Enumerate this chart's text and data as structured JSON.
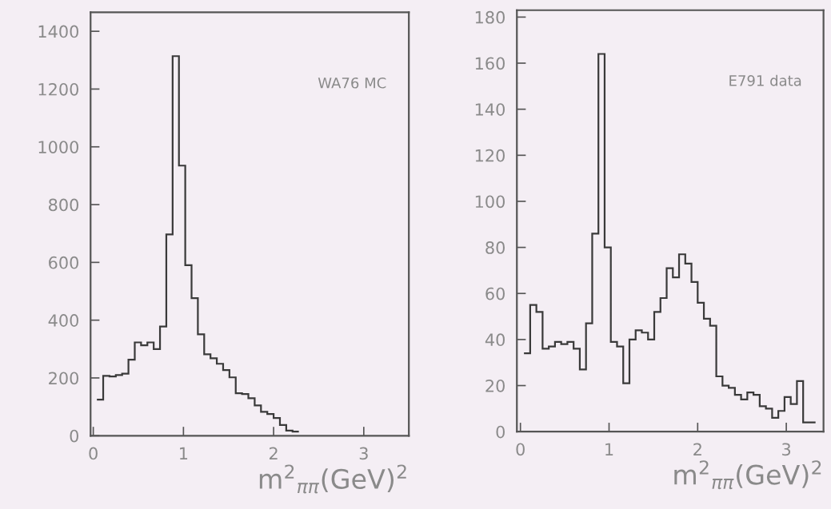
{
  "chart_data": [
    {
      "type": "histogram",
      "color": "#3a3a3a",
      "xlabel": "m$^{2}$$_{ππ}$(GeV)$^{2}$",
      "annotations": [
        "WA76 MC"
      ],
      "bins": [
        0.04,
        0.11,
        0.18,
        0.25,
        0.32,
        0.39,
        0.46,
        0.53,
        0.6,
        0.67,
        0.74,
        0.81,
        0.88,
        0.95,
        1.02,
        1.09,
        1.16,
        1.23,
        1.3,
        1.37,
        1.44,
        1.51,
        1.58,
        1.65,
        1.72,
        1.79,
        1.86,
        1.93,
        2.0,
        2.07,
        2.14,
        2.21,
        2.28
      ],
      "values": [
        125,
        207,
        205,
        210,
        215,
        263,
        323,
        313,
        323,
        300,
        378,
        697,
        1314,
        935,
        590,
        476,
        351,
        282,
        268,
        249,
        227,
        202,
        147,
        144,
        130,
        105,
        83,
        75,
        61,
        37,
        18,
        14
      ],
      "xlim": [
        -0.03,
        3.5
      ],
      "ylim": [
        0,
        1466
      ],
      "xticks": [
        0,
        1,
        2,
        3
      ],
      "yticks": [
        0,
        200,
        400,
        600,
        800,
        1000,
        1200,
        1400
      ]
    },
    {
      "type": "histogram",
      "color": "#3a3a3a",
      "xlabel": "m$^{2}$$_{ππ}$(GeV)$^{2}$",
      "annotations": [
        "E791 data"
      ],
      "bins": [
        0.04,
        0.11,
        0.18,
        0.25,
        0.32,
        0.39,
        0.46,
        0.53,
        0.6,
        0.67,
        0.74,
        0.81,
        0.88,
        0.95,
        1.02,
        1.09,
        1.16,
        1.23,
        1.3,
        1.37,
        1.44,
        1.51,
        1.58,
        1.65,
        1.72,
        1.79,
        1.86,
        1.93,
        2.0,
        2.07,
        2.14,
        2.21,
        2.28,
        2.35,
        2.42,
        2.49,
        2.56,
        2.63,
        2.7,
        2.77,
        2.84,
        2.91,
        2.98,
        3.05,
        3.12,
        3.19,
        3.26,
        3.33
      ],
      "values": [
        34,
        55,
        52,
        36,
        37,
        39,
        38,
        39,
        36,
        27,
        47,
        86,
        164,
        80,
        39,
        37,
        21,
        40,
        44,
        43,
        40,
        52,
        58,
        71,
        67,
        77,
        73,
        65,
        56,
        49,
        46,
        24,
        20,
        19,
        16,
        14,
        17,
        16,
        11,
        10,
        6,
        9,
        15,
        12,
        22,
        4,
        4
      ],
      "xlim": [
        -0.04,
        3.42
      ],
      "ylim": [
        0,
        183
      ],
      "xticks": [
        0,
        1,
        2,
        3
      ],
      "yticks": [
        0,
        20,
        40,
        60,
        80,
        100,
        120,
        140,
        160,
        180
      ]
    }
  ]
}
